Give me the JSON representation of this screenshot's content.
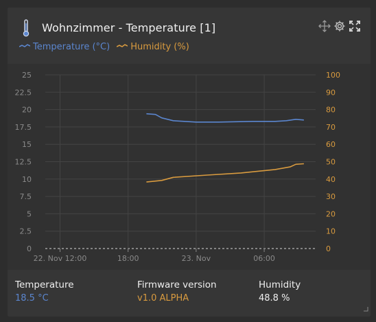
{
  "header": {
    "title": "Wohnzimmer - Temperature [1]",
    "icons": [
      "thermometer-icon",
      "move-icon",
      "gear-icon",
      "fullscreen-icon"
    ]
  },
  "colors": {
    "temperature": "#5b86cf",
    "humidity": "#d99b3f",
    "axis_text": "#8a8a8a",
    "grid": "#444444"
  },
  "chart_data": {
    "type": "line",
    "x": [
      "2023-11-22T19:37",
      "2023-11-22T20:25",
      "2023-11-22T20:58",
      "2023-11-22T21:59",
      "2023-11-23T01:59",
      "2023-11-23T04:58",
      "2023-11-23T07:57",
      "2023-11-23T08:47",
      "2023-11-23T09:30"
    ],
    "xlabels": [
      "22. Nov 12:00",
      "18:00",
      "23. Nov",
      "06:00"
    ],
    "series": [
      {
        "name": "Temperature (°C)",
        "axis": "left",
        "points": [
          [
            "2023-11-22T19:37",
            19.4
          ],
          [
            "2023-11-22T20:25",
            19.3
          ],
          [
            "2023-11-22T20:58",
            18.8
          ],
          [
            "2023-11-22T21:59",
            18.4
          ],
          [
            "2023-11-22T23:59",
            18.2
          ],
          [
            "2023-11-23T01:59",
            18.2
          ],
          [
            "2023-11-23T04:58",
            18.3
          ],
          [
            "2023-11-23T06:58",
            18.3
          ],
          [
            "2023-11-23T07:57",
            18.4
          ],
          [
            "2023-11-23T08:47",
            18.6
          ],
          [
            "2023-11-23T09:30",
            18.5
          ]
        ]
      },
      {
        "name": "Humidity (%)",
        "axis": "right",
        "points": [
          [
            "2023-11-22T19:37",
            38.3
          ],
          [
            "2023-11-22T20:58",
            39.2
          ],
          [
            "2023-11-22T21:59",
            41.0
          ],
          [
            "2023-11-23T00:59",
            42.3
          ],
          [
            "2023-11-23T03:58",
            43.5
          ],
          [
            "2023-11-23T06:58",
            45.5
          ],
          [
            "2023-11-23T08:17",
            47.0
          ],
          [
            "2023-11-23T08:47",
            48.5
          ],
          [
            "2023-11-23T09:30",
            48.8
          ]
        ]
      }
    ],
    "y_left": {
      "ylim": [
        0,
        25
      ],
      "ticks": [
        "0",
        "2.5",
        "5",
        "7.5",
        "10",
        "12.5",
        "15",
        "17.5",
        "20",
        "22.5",
        "25"
      ]
    },
    "y_right": {
      "ylim": [
        0,
        100
      ],
      "ticks": [
        "0",
        "10",
        "20",
        "30",
        "40",
        "50",
        "60",
        "70",
        "80",
        "90",
        "100"
      ]
    },
    "grid": true,
    "legend": "top-left"
  },
  "footer": {
    "temperature_label": "Temperature",
    "temperature_value": "18.5 °C",
    "firmware_label": "Firmware version",
    "firmware_value": "v1.0 ALPHA",
    "humidity_label": "Humidity",
    "humidity_value": "48.8 %"
  }
}
